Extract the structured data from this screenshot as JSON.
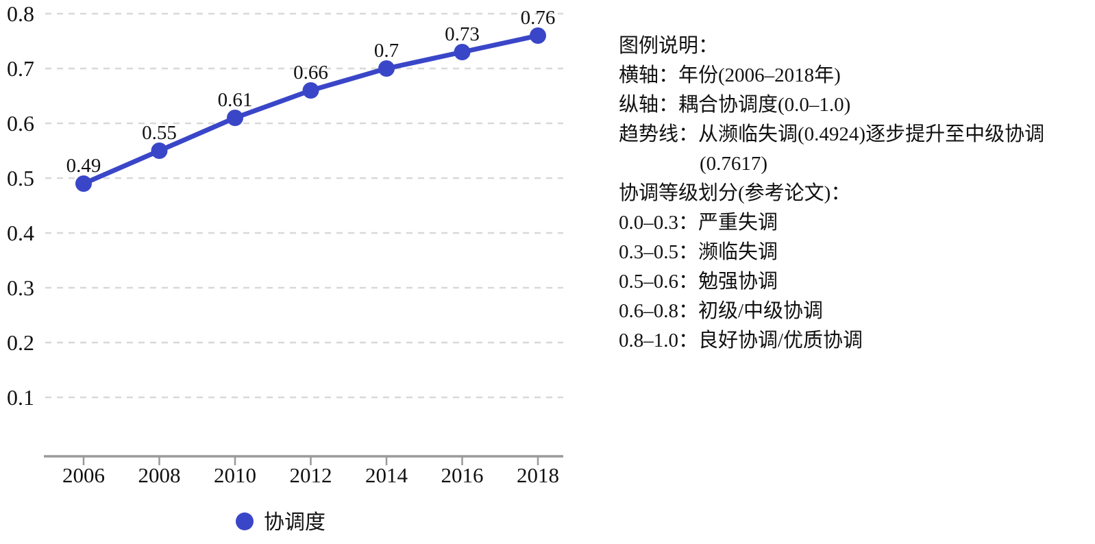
{
  "chart_data": {
    "type": "line",
    "x": [
      "2006",
      "2008",
      "2010",
      "2012",
      "2014",
      "2016",
      "2018"
    ],
    "series": [
      {
        "name": "协调度",
        "values": [
          0.49,
          0.55,
          0.61,
          0.66,
          0.7,
          0.73,
          0.76
        ],
        "point_labels": [
          "0.49",
          "0.55",
          "0.61",
          "0.66",
          "0.7",
          "0.73",
          "0.76"
        ]
      }
    ],
    "xlabel": "",
    "ylabel": "",
    "ylim": [
      0.0,
      0.8
    ],
    "yticks": [
      "0.1",
      "0.2",
      "0.3",
      "0.4",
      "0.5",
      "0.6",
      "0.7",
      "0.8"
    ],
    "grid": "horizontal-dashed",
    "legend_position": "bottom",
    "legend_label": "协调度"
  },
  "colors": {
    "line": "#3a46c8",
    "gridline": "#d8d8d8",
    "axis": "#999999",
    "text": "#111111"
  },
  "notes_panel": {
    "lines": [
      {
        "text": "图例说明：",
        "indent": 0
      },
      {
        "text": "横轴：年份(2006–2018年)",
        "indent": 0
      },
      {
        "text": "纵轴：耦合协调度(0.0–1.0)",
        "indent": 0
      },
      {
        "text": "趋势线：从濒临失调(0.4924)逐步提升至中级协调",
        "indent": 0
      },
      {
        "text": "(0.7617)",
        "indent": 1
      },
      {
        "text": "协调等级划分(参考论文)：",
        "indent": 0
      },
      {
        "text": "0.0–0.3：严重失调",
        "indent": 0
      },
      {
        "text": "0.3–0.5：濒临失调",
        "indent": 0
      },
      {
        "text": "0.5–0.6：勉强协调",
        "indent": 0
      },
      {
        "text": "0.6–0.8：初级/中级协调",
        "indent": 0
      },
      {
        "text": "0.8–1.0：良好协调/优质协调",
        "indent": 0
      }
    ]
  }
}
